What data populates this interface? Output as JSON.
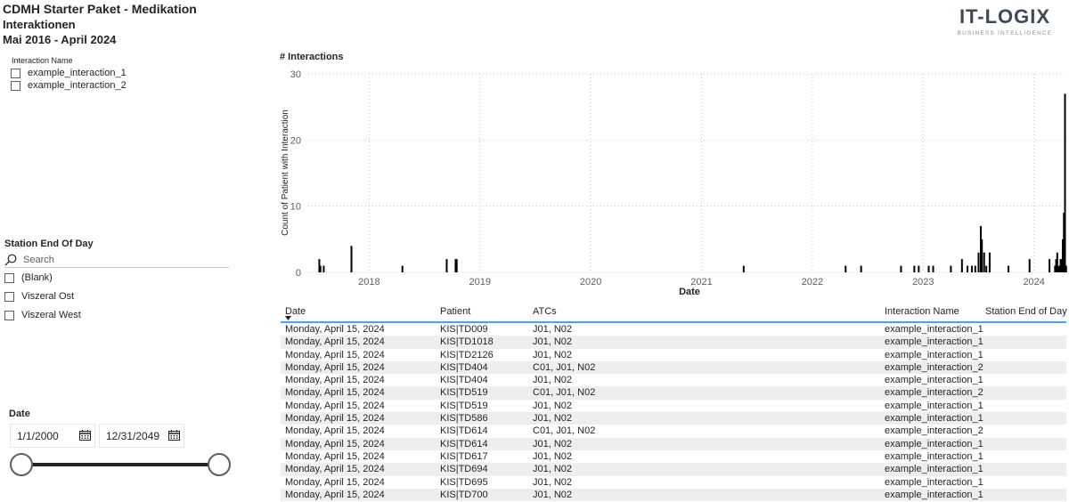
{
  "header": {
    "title": "CDMH Starter Paket - Medikation",
    "subtitle": "Interaktionen",
    "period": "Mai 2016 - April 2024"
  },
  "logo": {
    "main": "IT-LOGIX",
    "sub": "BUSINESS INTELLIGENCE"
  },
  "interaction_slicer": {
    "title": "Interaction Name",
    "items": [
      {
        "label": "example_interaction_1",
        "checked": false
      },
      {
        "label": "example_interaction_2",
        "checked": false
      }
    ]
  },
  "station_slicer": {
    "title": "Station End Of Day",
    "search_placeholder": "Search",
    "items": [
      {
        "label": "(Blank)",
        "checked": false
      },
      {
        "label": "Viszeral Ost",
        "checked": false
      },
      {
        "label": "Viszeral West",
        "checked": false
      }
    ]
  },
  "date_slicer": {
    "title": "Date",
    "start": "1/1/2000",
    "end": "12/31/2049",
    "range_start_fraction": 0,
    "range_end_fraction": 1
  },
  "chart_title": "# Interactions",
  "chart_data": {
    "type": "bar",
    "title": "# Interactions",
    "xlabel": "Date",
    "ylabel": "Count of Patient with Interaction",
    "x_ticks": [
      "2018",
      "2019",
      "2020",
      "2021",
      "2022",
      "2023",
      "2024"
    ],
    "x_tick_values": [
      2018,
      2019,
      2020,
      2021,
      2022,
      2023,
      2024
    ],
    "xlim": [
      2017.45,
      2024.3
    ],
    "y_ticks": [
      0,
      10,
      20,
      30
    ],
    "ylim": [
      0,
      30
    ],
    "grid": true,
    "bar_color": "#000000",
    "x": [
      2017.55,
      2017.56,
      2017.59,
      2017.84,
      2018.3,
      2018.7,
      2018.78,
      2018.79,
      2021.38,
      2022.3,
      2022.44,
      2022.8,
      2022.92,
      2022.96,
      2023.05,
      2023.09,
      2023.25,
      2023.35,
      2023.4,
      2023.44,
      2023.47,
      2023.5,
      2023.52,
      2023.53,
      2023.55,
      2023.57,
      2023.6,
      2023.77,
      2023.96,
      2024.14,
      2024.19,
      2024.2,
      2024.21,
      2024.22,
      2024.23,
      2024.24,
      2024.25,
      2024.26,
      2024.27,
      2024.28,
      2024.29
    ],
    "values": [
      2,
      1,
      1,
      4,
      1,
      2,
      2,
      2,
      1,
      1,
      1,
      1,
      1,
      1,
      1,
      1,
      1,
      2,
      1,
      1,
      1,
      3,
      7,
      5,
      3,
      1,
      3,
      1,
      2,
      2,
      1,
      2,
      3,
      1,
      1,
      2,
      2,
      5,
      9,
      27,
      1
    ]
  },
  "table": {
    "columns": [
      "Date",
      "Patient",
      "ATCs",
      "Interaction Name",
      "Station End of Day"
    ],
    "rows": [
      [
        "Monday, April 15, 2024",
        "KIS|TD009",
        "J01, N02",
        "example_interaction_1",
        ""
      ],
      [
        "Monday, April 15, 2024",
        "KIS|TD1018",
        "J01, N02",
        "example_interaction_1",
        ""
      ],
      [
        "Monday, April 15, 2024",
        "KIS|TD2126",
        "J01, N02",
        "example_interaction_1",
        ""
      ],
      [
        "Monday, April 15, 2024",
        "KIS|TD404",
        "C01, J01, N02",
        "example_interaction_2",
        ""
      ],
      [
        "Monday, April 15, 2024",
        "KIS|TD404",
        "J01, N02",
        "example_interaction_1",
        ""
      ],
      [
        "Monday, April 15, 2024",
        "KIS|TD519",
        "C01, J01, N02",
        "example_interaction_2",
        ""
      ],
      [
        "Monday, April 15, 2024",
        "KIS|TD519",
        "J01, N02",
        "example_interaction_1",
        ""
      ],
      [
        "Monday, April 15, 2024",
        "KIS|TD586",
        "J01, N02",
        "example_interaction_1",
        ""
      ],
      [
        "Monday, April 15, 2024",
        "KIS|TD614",
        "C01, J01, N02",
        "example_interaction_2",
        ""
      ],
      [
        "Monday, April 15, 2024",
        "KIS|TD614",
        "J01, N02",
        "example_interaction_1",
        ""
      ],
      [
        "Monday, April 15, 2024",
        "KIS|TD617",
        "J01, N02",
        "example_interaction_1",
        ""
      ],
      [
        "Monday, April 15, 2024",
        "KIS|TD694",
        "J01, N02",
        "example_interaction_1",
        ""
      ],
      [
        "Monday, April 15, 2024",
        "KIS|TD695",
        "J01, N02",
        "example_interaction_1",
        ""
      ],
      [
        "Monday, April 15, 2024",
        "KIS|TD700",
        "J01, N02",
        "example_interaction_1",
        ""
      ]
    ]
  }
}
